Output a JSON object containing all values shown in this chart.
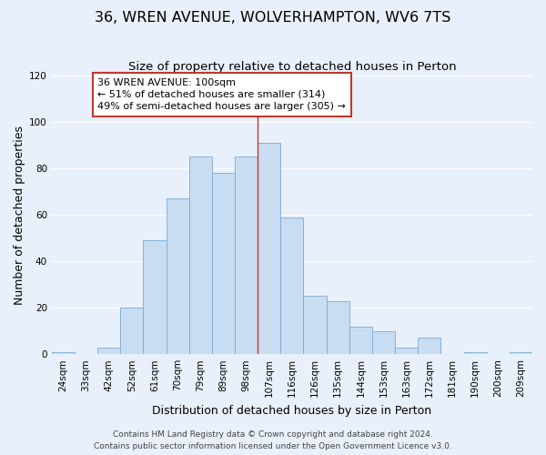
{
  "title": "36, WREN AVENUE, WOLVERHAMPTON, WV6 7TS",
  "subtitle": "Size of property relative to detached houses in Perton",
  "xlabel": "Distribution of detached houses by size in Perton",
  "ylabel": "Number of detached properties",
  "bin_labels": [
    "24sqm",
    "33sqm",
    "42sqm",
    "52sqm",
    "61sqm",
    "70sqm",
    "79sqm",
    "89sqm",
    "98sqm",
    "107sqm",
    "116sqm",
    "126sqm",
    "135sqm",
    "144sqm",
    "153sqm",
    "163sqm",
    "172sqm",
    "181sqm",
    "190sqm",
    "200sqm",
    "209sqm"
  ],
  "bar_values": [
    1,
    0,
    3,
    20,
    49,
    67,
    85,
    78,
    85,
    91,
    59,
    25,
    23,
    12,
    10,
    3,
    7,
    0,
    1,
    0,
    1
  ],
  "bar_color": "#c9ddf2",
  "bar_edge_color": "#7aaad4",
  "vline_x_bin": 8,
  "vline_color": "#c0392b",
  "annotation_text": "36 WREN AVENUE: 100sqm\n← 51% of detached houses are smaller (314)\n49% of semi-detached houses are larger (305) →",
  "annotation_box_edgecolor": "#c0392b",
  "annotation_box_facecolor": "#ffffff",
  "ylim": [
    0,
    120
  ],
  "yticks": [
    0,
    20,
    40,
    60,
    80,
    100,
    120
  ],
  "footer_line1": "Contains HM Land Registry data © Crown copyright and database right 2024.",
  "footer_line2": "Contains public sector information licensed under the Open Government Licence v3.0.",
  "background_color": "#e8f0fb",
  "plot_background_color": "#e8f0fb",
  "title_fontsize": 11.5,
  "subtitle_fontsize": 9.5,
  "axis_label_fontsize": 9,
  "tick_fontsize": 7.5,
  "footer_fontsize": 6.5,
  "annotation_fontsize": 8
}
